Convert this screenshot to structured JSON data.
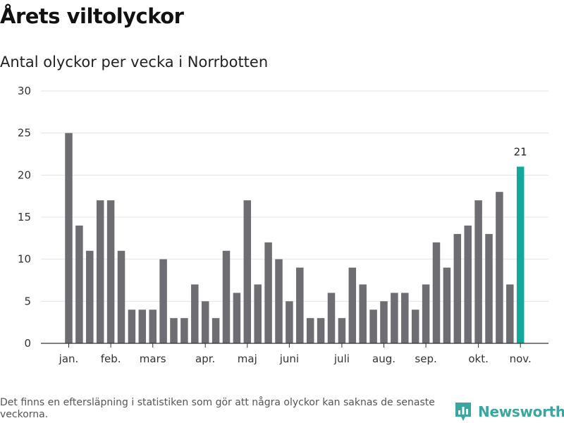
{
  "header": {
    "title": "Årets viltolyckor",
    "subtitle": "Antal olyckor per vecka i Norrbotten"
  },
  "footer": {
    "note": "Det finns en eftersläpning i statistiken som gör att några olyckor kan saknas de senaste veckorna.",
    "brand_name": "Newsworthy",
    "brand_icon": "bar-chart-logo-icon"
  },
  "colors": {
    "bar": "#6e6d72",
    "highlight": "#13a89e",
    "grid": "#e4e4e4",
    "axis": "#333333",
    "brand": "#3aa6a0"
  },
  "chart_data": {
    "type": "bar",
    "title": "Antal olyckor per vecka i Norrbotten",
    "xlabel": "",
    "ylabel": "",
    "ylim": [
      0,
      30
    ],
    "yticks": [
      0,
      5,
      10,
      15,
      20,
      25,
      30
    ],
    "grid": true,
    "values": [
      25,
      14,
      11,
      17,
      17,
      11,
      4,
      4,
      4,
      10,
      3,
      3,
      7,
      5,
      3,
      11,
      6,
      17,
      7,
      12,
      10,
      5,
      9,
      3,
      3,
      6,
      3,
      9,
      7,
      4,
      5,
      6,
      6,
      4,
      7,
      12,
      9,
      13,
      14,
      17,
      13,
      18,
      7,
      21
    ],
    "highlight_index": 43,
    "highlight_label": "21",
    "month_ticks": [
      {
        "index": 0,
        "label": "jan."
      },
      {
        "index": 4,
        "label": "feb."
      },
      {
        "index": 8,
        "label": "mars"
      },
      {
        "index": 13,
        "label": "apr."
      },
      {
        "index": 17,
        "label": "maj"
      },
      {
        "index": 21,
        "label": "juni"
      },
      {
        "index": 26,
        "label": "juli"
      },
      {
        "index": 30,
        "label": "aug."
      },
      {
        "index": 34,
        "label": "sep."
      },
      {
        "index": 39,
        "label": "okt."
      },
      {
        "index": 43,
        "label": "nov."
      }
    ]
  }
}
